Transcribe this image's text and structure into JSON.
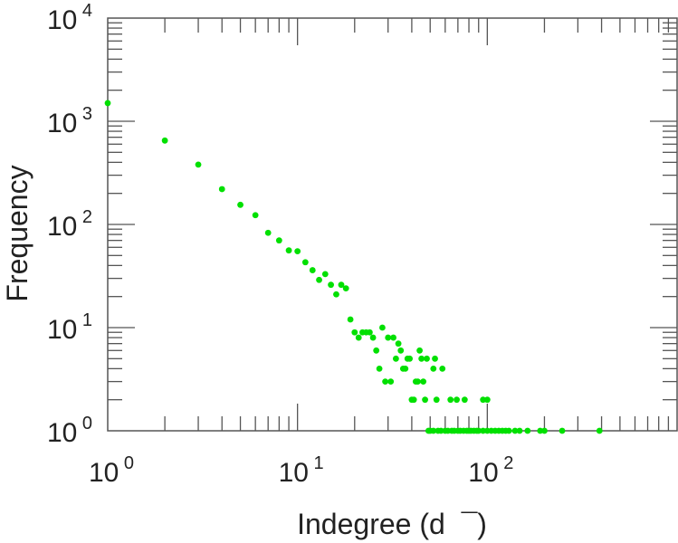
{
  "chart_data": {
    "type": "scatter",
    "title": "",
    "xlabel": "Indegree (d  ¯)",
    "ylabel": "Frequency",
    "xscale": "log",
    "yscale": "log",
    "xlim": [
      1,
      1000
    ],
    "ylim": [
      1,
      10000
    ],
    "x_ticks": [
      {
        "base": "10",
        "exp": "0",
        "value": 1
      },
      {
        "base": "10",
        "exp": "1",
        "value": 10
      },
      {
        "base": "10",
        "exp": "2",
        "value": 100
      }
    ],
    "y_ticks": [
      {
        "base": "10",
        "exp": "0",
        "value": 1
      },
      {
        "base": "10",
        "exp": "1",
        "value": 10
      },
      {
        "base": "10",
        "exp": "2",
        "value": 100
      },
      {
        "base": "10",
        "exp": "3",
        "value": 1000
      },
      {
        "base": "10",
        "exp": "4",
        "value": 10000
      }
    ],
    "grid": false,
    "marker_color": "#00e000",
    "points": [
      [
        1,
        1500
      ],
      [
        2,
        650
      ],
      [
        3,
        380
      ],
      [
        4,
        220
      ],
      [
        5,
        155
      ],
      [
        6,
        123
      ],
      [
        7,
        83
      ],
      [
        8,
        70
      ],
      [
        9,
        56
      ],
      [
        10,
        55
      ],
      [
        11,
        43
      ],
      [
        12,
        36
      ],
      [
        13,
        29
      ],
      [
        14,
        33
      ],
      [
        15,
        26
      ],
      [
        16,
        21
      ],
      [
        17,
        26
      ],
      [
        18,
        24
      ],
      [
        19,
        12
      ],
      [
        20,
        9
      ],
      [
        21,
        8
      ],
      [
        22,
        9
      ],
      [
        23,
        9
      ],
      [
        24,
        9
      ],
      [
        25,
        8
      ],
      [
        26,
        6
      ],
      [
        27,
        4
      ],
      [
        28,
        10
      ],
      [
        29,
        3
      ],
      [
        30,
        8
      ],
      [
        31,
        3
      ],
      [
        32,
        8
      ],
      [
        33,
        5
      ],
      [
        34,
        7
      ],
      [
        35,
        6
      ],
      [
        36,
        4
      ],
      [
        37,
        4
      ],
      [
        38,
        5
      ],
      [
        39,
        5
      ],
      [
        40,
        2
      ],
      [
        41,
        2
      ],
      [
        42,
        3
      ],
      [
        43,
        3
      ],
      [
        44,
        6
      ],
      [
        45,
        5
      ],
      [
        46,
        3
      ],
      [
        47,
        2
      ],
      [
        48,
        5
      ],
      [
        52,
        4
      ],
      [
        53,
        5
      ],
      [
        54,
        2
      ],
      [
        58,
        4
      ],
      [
        64,
        2
      ],
      [
        69,
        2
      ],
      [
        76,
        2
      ],
      [
        95,
        2
      ],
      [
        100,
        2
      ],
      [
        49,
        1
      ],
      [
        50,
        1
      ],
      [
        52,
        1
      ],
      [
        55,
        1
      ],
      [
        57,
        1
      ],
      [
        60,
        1
      ],
      [
        62,
        1
      ],
      [
        65,
        1
      ],
      [
        67,
        1
      ],
      [
        70,
        1
      ],
      [
        72,
        1
      ],
      [
        75,
        1
      ],
      [
        78,
        1
      ],
      [
        80,
        1
      ],
      [
        82,
        1
      ],
      [
        85,
        1
      ],
      [
        88,
        1
      ],
      [
        90,
        1
      ],
      [
        95,
        1
      ],
      [
        100,
        1
      ],
      [
        105,
        1
      ],
      [
        110,
        1
      ],
      [
        115,
        1
      ],
      [
        120,
        1
      ],
      [
        125,
        1
      ],
      [
        130,
        1
      ],
      [
        140,
        1
      ],
      [
        148,
        1
      ],
      [
        163,
        1
      ],
      [
        190,
        1
      ],
      [
        200,
        1
      ],
      [
        248,
        1
      ],
      [
        390,
        1
      ]
    ]
  }
}
